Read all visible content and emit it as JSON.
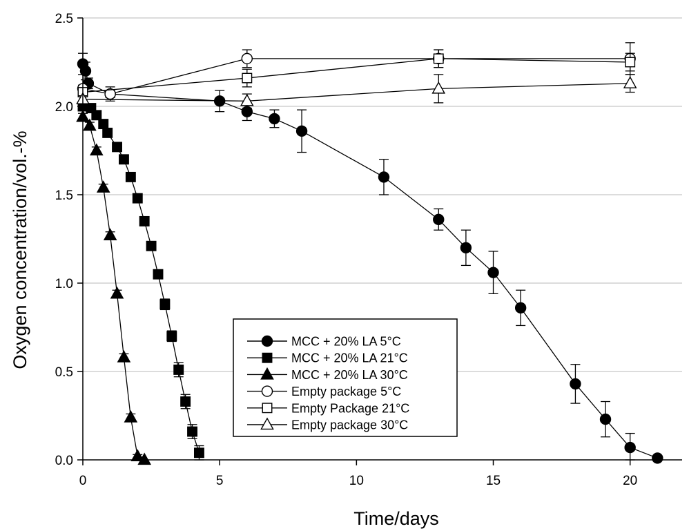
{
  "chart_data": {
    "type": "line",
    "title": "",
    "xlabel": "Time/days",
    "ylabel": "Oxygen concentration/vol.-%",
    "xlim": [
      0,
      21.9
    ],
    "ylim": [
      0,
      2.5
    ],
    "x_ticks": [
      0,
      5,
      10,
      15,
      20
    ],
    "y_ticks": [
      0.0,
      0.5,
      1.0,
      1.5,
      2.0,
      2.5
    ],
    "x_tick_labels": [
      "0",
      "5",
      "10",
      "15",
      "20"
    ],
    "y_tick_labels": [
      "0.0",
      "0.5",
      "1.0",
      "1.5",
      "2.0",
      "2.5"
    ],
    "grid": "horizontal",
    "legend_position": "bottom-center",
    "series": [
      {
        "name": "MCC + 20% LA 5°C",
        "marker": "circle",
        "filled": true,
        "x": [
          0,
          0.1,
          0.2,
          1,
          5,
          6,
          7,
          8,
          11,
          13,
          14,
          15,
          16,
          18,
          19.1,
          20,
          21
        ],
        "y": [
          2.24,
          2.2,
          2.13,
          2.07,
          2.03,
          1.97,
          1.93,
          1.86,
          1.6,
          1.36,
          1.2,
          1.06,
          0.86,
          0.43,
          0.23,
          0.07,
          0.01
        ],
        "err": [
          0.06,
          0.05,
          0.03,
          0.04,
          0.06,
          0.05,
          0.05,
          0.12,
          0.1,
          0.06,
          0.1,
          0.12,
          0.1,
          0.11,
          0.1,
          0.08,
          0.0
        ]
      },
      {
        "name": "MCC + 20% LA 21°C",
        "marker": "square",
        "filled": true,
        "x": [
          0,
          0.3,
          0.5,
          0.75,
          0.9,
          1.25,
          1.5,
          1.75,
          2,
          2.25,
          2.5,
          2.75,
          3.0,
          3.25,
          3.5,
          3.75,
          4.0,
          4.25
        ],
        "y": [
          2.0,
          1.99,
          1.95,
          1.9,
          1.85,
          1.77,
          1.7,
          1.6,
          1.48,
          1.35,
          1.21,
          1.05,
          0.88,
          0.7,
          0.51,
          0.33,
          0.16,
          0.04
        ],
        "err": [
          0.02,
          0.02,
          0.02,
          0.02,
          0.02,
          0.02,
          0.02,
          0.02,
          0.02,
          0.02,
          0.02,
          0.02,
          0.03,
          0.03,
          0.04,
          0.04,
          0.04,
          0.04
        ]
      },
      {
        "name": "MCC + 20% LA 30°C",
        "marker": "triangle",
        "filled": true,
        "x": [
          0,
          0.25,
          0.5,
          0.75,
          1.0,
          1.25,
          1.5,
          1.75,
          2.0,
          2.25
        ],
        "y": [
          1.94,
          1.89,
          1.75,
          1.54,
          1.27,
          0.94,
          0.58,
          0.24,
          0.02,
          0.0
        ],
        "err": [
          0.02,
          0.02,
          0.02,
          0.02,
          0.02,
          0.02,
          0.02,
          0.02,
          0.01,
          0.0
        ]
      },
      {
        "name": "Empty package 5°C",
        "marker": "circle",
        "filled": false,
        "x": [
          0,
          1,
          6,
          13,
          20
        ],
        "y": [
          2.1,
          2.07,
          2.27,
          2.27,
          2.27
        ],
        "err": [
          0.02,
          0.02,
          0.05,
          0.05,
          0.09
        ]
      },
      {
        "name": "Empty Package 21°C",
        "marker": "square",
        "filled": false,
        "x": [
          0,
          6,
          13,
          20
        ],
        "y": [
          2.08,
          2.16,
          2.27,
          2.25
        ],
        "err": [
          0.02,
          0.05,
          0.05,
          0.05
        ]
      },
      {
        "name": "Empty package 30°C",
        "marker": "triangle",
        "filled": false,
        "x": [
          0,
          6,
          13,
          20
        ],
        "y": [
          2.04,
          2.03,
          2.1,
          2.13
        ],
        "err": [
          0.02,
          0.04,
          0.08,
          0.05
        ]
      }
    ]
  }
}
